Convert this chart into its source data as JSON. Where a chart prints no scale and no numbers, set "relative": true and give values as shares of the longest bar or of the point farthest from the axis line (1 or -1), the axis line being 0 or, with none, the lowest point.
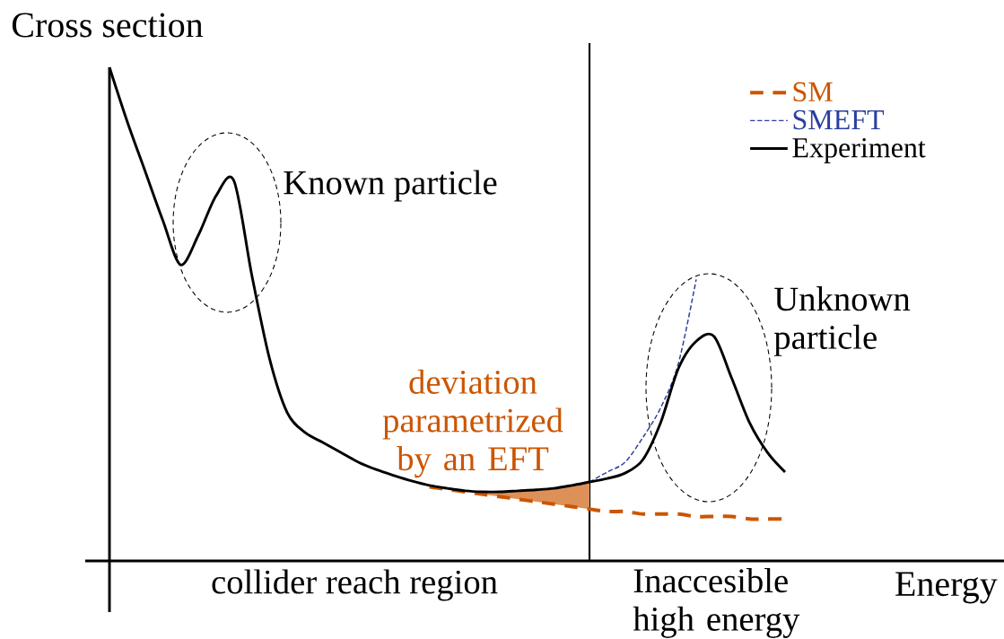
{
  "chart_data": {
    "type": "line",
    "relative": true,
    "xlabel": "Energy",
    "ylabel": "Cross section",
    "legend": "top right",
    "categories": [
      null,
      null,
      null,
      null,
      null,
      null,
      null,
      null,
      null,
      null,
      null,
      null,
      null,
      null,
      null,
      null,
      null,
      null,
      null,
      null,
      null,
      null,
      null,
      null,
      null,
      null,
      null,
      null,
      null,
      null,
      null,
      null,
      null,
      null,
      null,
      null,
      null,
      null,
      null
    ],
    "series": [
      {
        "name": "SM",
        "color": "#cc5500",
        "line_style": "dashed",
        "values": [
          null,
          null,
          null,
          null,
          null,
          null,
          null,
          null,
          null,
          null,
          null,
          null,
          null,
          null,
          null,
          null,
          null,
          null,
          0.15,
          0.145,
          0.14,
          0.135,
          0.13,
          0.125,
          0.12,
          0.115,
          0.11,
          0.105,
          0.1,
          0.1,
          0.095,
          0.095,
          0.095,
          0.09,
          0.09,
          0.09,
          0.085,
          0.085,
          0.085
        ],
        "lower": [
          null,
          null,
          null,
          null,
          null,
          null,
          null,
          null,
          null,
          null,
          null,
          null,
          null,
          null,
          null,
          null,
          null,
          null,
          null,
          null,
          null,
          0.135,
          0.13,
          0.125,
          0.12,
          0.115,
          0.11,
          0.105,
          null,
          null,
          null,
          null,
          null,
          null,
          null,
          null,
          null,
          null,
          null
        ],
        "upper": [
          null,
          null,
          null,
          null,
          null,
          null,
          null,
          null,
          null,
          null,
          null,
          null,
          null,
          null,
          null,
          null,
          null,
          null,
          null,
          null,
          null,
          0.14,
          0.14,
          0.142,
          0.144,
          0.147,
          0.153,
          0.16,
          null,
          null,
          null,
          null,
          null,
          null,
          null,
          null,
          null,
          null,
          null
        ]
      },
      {
        "name": "SMEFT",
        "color": "#2b3f9e",
        "line_style": "dashed",
        "values": [
          null,
          null,
          null,
          null,
          null,
          null,
          null,
          null,
          null,
          null,
          null,
          null,
          null,
          null,
          null,
          null,
          null,
          null,
          null,
          null,
          null,
          null,
          null,
          null,
          null,
          null,
          null,
          0.16,
          0.18,
          0.2,
          0.25,
          0.31,
          0.4,
          0.57,
          null,
          null,
          null,
          null,
          null
        ]
      },
      {
        "name": "Experiment",
        "color": "#000000",
        "line_style": "solid",
        "values": [
          1.0,
          0.89,
          0.79,
          0.69,
          0.6,
          0.66,
          0.74,
          0.77,
          0.58,
          0.41,
          0.3,
          0.26,
          0.24,
          0.22,
          0.2,
          0.185,
          0.173,
          0.162,
          0.153,
          0.147,
          0.142,
          0.14,
          0.14,
          0.142,
          0.144,
          0.147,
          0.153,
          0.16,
          0.167,
          0.178,
          0.205,
          0.28,
          0.39,
          0.445,
          0.455,
          0.37,
          0.28,
          0.22,
          0.18
        ]
      }
    ],
    "annotations": [
      "Known particle",
      "Unknown particle",
      "deviation parametrized by an EFT",
      "collider reach region",
      "Inaccesible high energy"
    ]
  }
}
